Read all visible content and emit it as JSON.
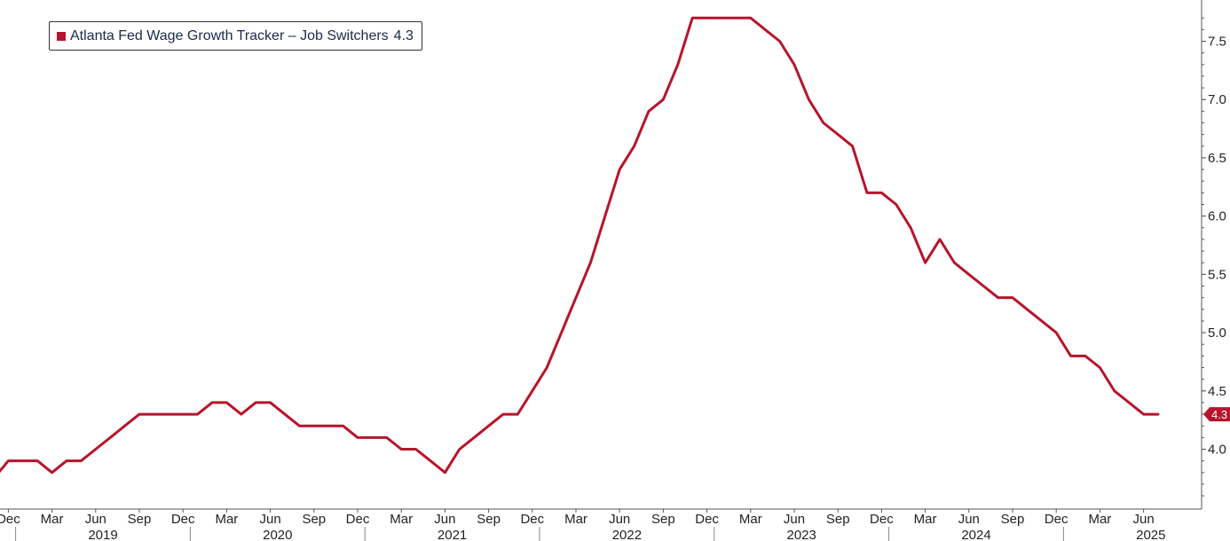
{
  "legend": {
    "label": "Atlanta Fed Wage Growth Tracker – Job Switchers",
    "last_value": "4.3"
  },
  "colors": {
    "series": "#b5152b",
    "axis": "#555555",
    "text": "#222222"
  },
  "chart_data": {
    "type": "line",
    "series": [
      {
        "name": "Atlanta Fed Wage Growth Tracker – Job Switchers",
        "points": [
          [
            "2018-11",
            3.75
          ],
          [
            "2018-12",
            3.9
          ],
          [
            "2019-01",
            3.9
          ],
          [
            "2019-02",
            3.9
          ],
          [
            "2019-03",
            3.8
          ],
          [
            "2019-04",
            3.9
          ],
          [
            "2019-05",
            3.9
          ],
          [
            "2019-06",
            4.0
          ],
          [
            "2019-07",
            4.1
          ],
          [
            "2019-08",
            4.2
          ],
          [
            "2019-09",
            4.3
          ],
          [
            "2019-10",
            4.3
          ],
          [
            "2019-11",
            4.3
          ],
          [
            "2019-12",
            4.3
          ],
          [
            "2020-01",
            4.3
          ],
          [
            "2020-02",
            4.4
          ],
          [
            "2020-03",
            4.4
          ],
          [
            "2020-04",
            4.3
          ],
          [
            "2020-05",
            4.4
          ],
          [
            "2020-06",
            4.4
          ],
          [
            "2020-07",
            4.3
          ],
          [
            "2020-08",
            4.2
          ],
          [
            "2020-09",
            4.2
          ],
          [
            "2020-10",
            4.2
          ],
          [
            "2020-11",
            4.2
          ],
          [
            "2020-12",
            4.1
          ],
          [
            "2021-01",
            4.1
          ],
          [
            "2021-02",
            4.1
          ],
          [
            "2021-03",
            4.0
          ],
          [
            "2021-04",
            4.0
          ],
          [
            "2021-05",
            3.9
          ],
          [
            "2021-06",
            3.8
          ],
          [
            "2021-07",
            4.0
          ],
          [
            "2021-08",
            4.1
          ],
          [
            "2021-09",
            4.2
          ],
          [
            "2021-10",
            4.3
          ],
          [
            "2021-11",
            4.3
          ],
          [
            "2021-12",
            4.5
          ],
          [
            "2022-01",
            4.7
          ],
          [
            "2022-02",
            5.0
          ],
          [
            "2022-03",
            5.3
          ],
          [
            "2022-04",
            5.6
          ],
          [
            "2022-05",
            6.0
          ],
          [
            "2022-06",
            6.4
          ],
          [
            "2022-07",
            6.6
          ],
          [
            "2022-08",
            6.9
          ],
          [
            "2022-09",
            7.0
          ],
          [
            "2022-10",
            7.3
          ],
          [
            "2022-11",
            7.7
          ],
          [
            "2022-12",
            7.7
          ],
          [
            "2023-01",
            7.7
          ],
          [
            "2023-02",
            7.7
          ],
          [
            "2023-03",
            7.7
          ],
          [
            "2023-04",
            7.6
          ],
          [
            "2023-05",
            7.5
          ],
          [
            "2023-06",
            7.3
          ],
          [
            "2023-07",
            7.0
          ],
          [
            "2023-08",
            6.8
          ],
          [
            "2023-09",
            6.7
          ],
          [
            "2023-10",
            6.6
          ],
          [
            "2023-11",
            6.2
          ],
          [
            "2023-12",
            6.2
          ],
          [
            "2024-01",
            6.1
          ],
          [
            "2024-02",
            5.9
          ],
          [
            "2024-03",
            5.6
          ],
          [
            "2024-04",
            5.8
          ],
          [
            "2024-05",
            5.6
          ],
          [
            "2024-06",
            5.5
          ],
          [
            "2024-07",
            5.4
          ],
          [
            "2024-08",
            5.3
          ],
          [
            "2024-09",
            5.3
          ],
          [
            "2024-10",
            5.2
          ],
          [
            "2024-11",
            5.1
          ],
          [
            "2024-12",
            5.0
          ],
          [
            "2025-01",
            4.8
          ],
          [
            "2025-02",
            4.8
          ],
          [
            "2025-03",
            4.7
          ],
          [
            "2025-04",
            4.5
          ],
          [
            "2025-05",
            4.4
          ],
          [
            "2025-06",
            4.3
          ],
          [
            "2025-07",
            4.3
          ]
        ]
      }
    ],
    "x_tick_labels": [
      {
        "month": "2018-12",
        "label": "Dec"
      },
      {
        "month": "2019-03",
        "label": "Mar"
      },
      {
        "month": "2019-06",
        "label": "Jun"
      },
      {
        "month": "2019-09",
        "label": "Sep"
      },
      {
        "month": "2019-12",
        "label": "Dec"
      },
      {
        "month": "2020-03",
        "label": "Mar"
      },
      {
        "month": "2020-06",
        "label": "Jun"
      },
      {
        "month": "2020-09",
        "label": "Sep"
      },
      {
        "month": "2020-12",
        "label": "Dec"
      },
      {
        "month": "2021-03",
        "label": "Mar"
      },
      {
        "month": "2021-06",
        "label": "Jun"
      },
      {
        "month": "2021-09",
        "label": "Sep"
      },
      {
        "month": "2021-12",
        "label": "Dec"
      },
      {
        "month": "2022-03",
        "label": "Mar"
      },
      {
        "month": "2022-06",
        "label": "Jun"
      },
      {
        "month": "2022-09",
        "label": "Sep"
      },
      {
        "month": "2022-12",
        "label": "Dec"
      },
      {
        "month": "2023-03",
        "label": "Mar"
      },
      {
        "month": "2023-06",
        "label": "Jun"
      },
      {
        "month": "2023-09",
        "label": "Sep"
      },
      {
        "month": "2023-12",
        "label": "Dec"
      },
      {
        "month": "2024-03",
        "label": "Mar"
      },
      {
        "month": "2024-06",
        "label": "Jun"
      },
      {
        "month": "2024-09",
        "label": "Sep"
      },
      {
        "month": "2024-12",
        "label": "Dec"
      },
      {
        "month": "2025-03",
        "label": "Mar"
      },
      {
        "month": "2025-06",
        "label": "Jun"
      }
    ],
    "x_year_labels": [
      {
        "year": "2019",
        "start": "2019-01",
        "end": "2019-12"
      },
      {
        "year": "2020",
        "start": "2020-01",
        "end": "2020-12"
      },
      {
        "year": "2021",
        "start": "2021-01",
        "end": "2021-12"
      },
      {
        "year": "2022",
        "start": "2022-01",
        "end": "2022-12"
      },
      {
        "year": "2023",
        "start": "2023-01",
        "end": "2023-12"
      },
      {
        "year": "2024",
        "start": "2024-01",
        "end": "2024-12"
      },
      {
        "year": "2025",
        "start": "2025-01",
        "end": "2025-12"
      }
    ],
    "y_ticks": [
      "4.0",
      "4.5",
      "5.0",
      "5.5",
      "6.0",
      "6.5",
      "7.0",
      "7.5"
    ],
    "xlim": [
      "2018-11",
      "2025-12"
    ],
    "ylim": [
      3.5,
      7.8
    ],
    "y_axis_side": "right",
    "grid": false,
    "legend_position": "top-left",
    "last_value_label": "4.3"
  }
}
